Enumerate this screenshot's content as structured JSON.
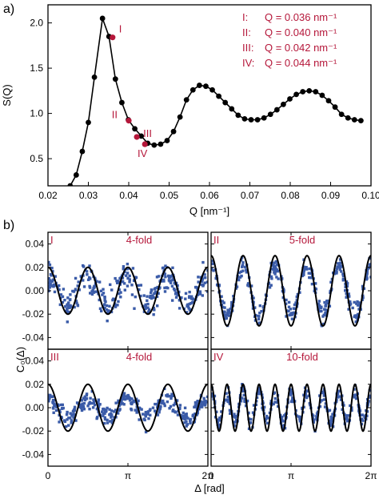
{
  "colors": {
    "accent": "#b5173a",
    "scatter": "#3a5ba8",
    "line": "#000000"
  },
  "chart_data": [
    {
      "type": "line",
      "panel_label": "a)",
      "xlabel": "Q [nm⁻¹]",
      "ylabel": "S(Q)",
      "xlim": [
        0.02,
        0.1
      ],
      "ylim": [
        0.2,
        2.2
      ],
      "xticks": [
        "0.02",
        "0.03",
        "0.04",
        "0.05",
        "0.06",
        "0.07",
        "0.08",
        "0.09",
        "0.10"
      ],
      "yticks": [
        "0.5",
        "1.0",
        "1.5",
        "2.0"
      ],
      "x": [
        0.0255,
        0.027,
        0.0285,
        0.03,
        0.0315,
        0.0335,
        0.0351,
        0.0367,
        0.0383,
        0.0399,
        0.0415,
        0.0431,
        0.0447,
        0.0463,
        0.0479,
        0.0495,
        0.0511,
        0.0527,
        0.0543,
        0.0559,
        0.0575,
        0.0591,
        0.0607,
        0.0623,
        0.0639,
        0.0655,
        0.0671,
        0.0687,
        0.0703,
        0.0719,
        0.0735,
        0.0751,
        0.0767,
        0.0783,
        0.0799,
        0.0815,
        0.0831,
        0.0847,
        0.0863,
        0.0879,
        0.0895,
        0.0911,
        0.0927,
        0.0943,
        0.0959,
        0.0975
      ],
      "y": [
        0.2,
        0.32,
        0.58,
        0.9,
        1.4,
        2.05,
        1.85,
        1.38,
        1.12,
        0.93,
        0.83,
        0.75,
        0.67,
        0.65,
        0.66,
        0.7,
        0.8,
        0.96,
        1.15,
        1.26,
        1.31,
        1.3,
        1.26,
        1.19,
        1.12,
        1.05,
        0.98,
        0.94,
        0.93,
        0.93,
        0.95,
        0.99,
        1.04,
        1.1,
        1.16,
        1.21,
        1.24,
        1.25,
        1.24,
        1.2,
        1.14,
        1.07,
        0.99,
        0.95,
        0.93,
        0.92
      ],
      "markers": [
        {
          "label": "I",
          "x": 0.036,
          "y": 1.84
        },
        {
          "label": "II",
          "x": 0.04,
          "y": 0.92
        },
        {
          "label": "III",
          "x": 0.042,
          "y": 0.74
        },
        {
          "label": "IV",
          "x": 0.044,
          "y": 0.66
        }
      ],
      "legend": [
        {
          "tag": "I:",
          "eq": "Q = 0.036 nm⁻¹"
        },
        {
          "tag": "II:",
          "eq": "Q = 0.040 nm⁻¹"
        },
        {
          "tag": "III:",
          "eq": "Q = 0.042 nm⁻¹"
        },
        {
          "tag": "IV:",
          "eq": "Q = 0.044 nm⁻¹"
        }
      ]
    },
    {
      "type": "scatter",
      "panel_label": "b)",
      "xlabel": "Δ [rad]",
      "ylabel": "C₀(Δ)",
      "xlim": [
        0,
        6.283
      ],
      "ylim": [
        -0.05,
        0.05
      ],
      "xticks": [
        "0",
        "π",
        "2π"
      ],
      "yticks": [
        "0.04",
        "0.02",
        "0.00",
        "-0.02",
        "-0.04"
      ],
      "panels": [
        {
          "roman": "I",
          "fold_label": "4-fold",
          "fold": 4,
          "fit_amplitude": 0.02,
          "scatter_amplitude": 0.012,
          "noise": 0.012
        },
        {
          "roman": "II",
          "fold_label": "5-fold",
          "fold": 5,
          "fit_amplitude": 0.03,
          "scatter_amplitude": 0.021,
          "noise": 0.007
        },
        {
          "roman": "III",
          "fold_label": "4-fold",
          "fold": 4,
          "fit_amplitude": 0.02,
          "scatter_amplitude": 0.008,
          "noise": 0.007
        },
        {
          "roman": "IV",
          "fold_label": "10-fold",
          "fold": 10,
          "fit_amplitude": 0.02,
          "scatter_amplitude": 0.012,
          "noise": 0.006
        }
      ]
    }
  ]
}
